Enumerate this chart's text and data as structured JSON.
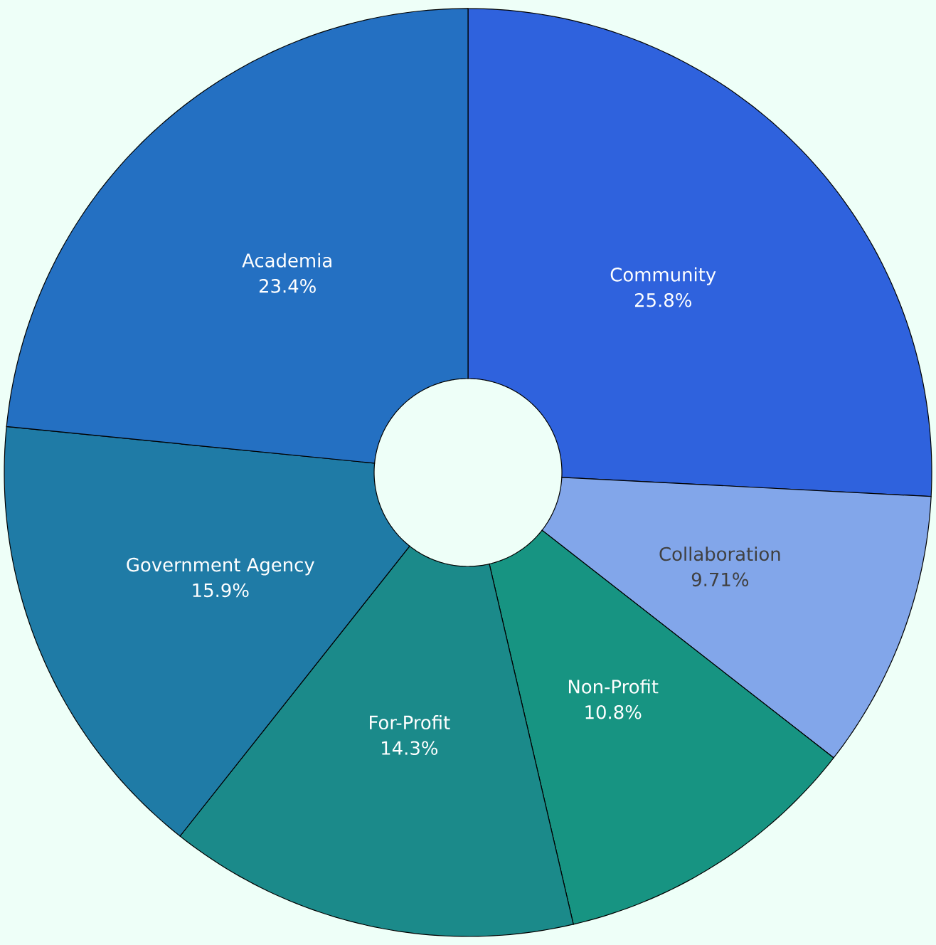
{
  "chart_data": {
    "type": "donut",
    "categories": [
      "Community",
      "Collaboration",
      "Non-Profit",
      "For-Profit",
      "Government Agency",
      "Academia"
    ],
    "values": [
      25.8,
      9.71,
      10.8,
      14.3,
      15.9,
      23.4
    ],
    "value_labels": [
      "25.8%",
      "9.71%",
      "10.8%",
      "14.3%",
      "15.9%",
      "23.4%"
    ],
    "colors": [
      "#2f62dd",
      "#82a6ea",
      "#179482",
      "#1b8a8a",
      "#1f7ba6",
      "#2470c2"
    ]
  }
}
